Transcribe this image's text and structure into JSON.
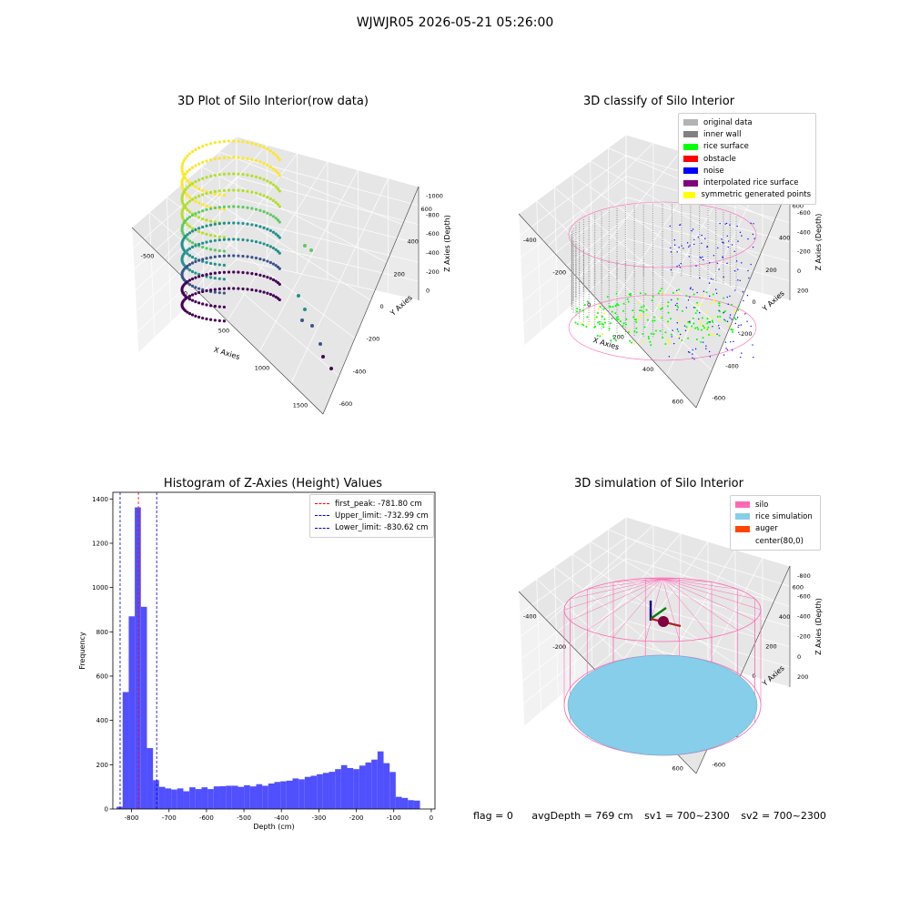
{
  "figure": {
    "suptitle": "WJWJR05 2026-05-21 05:26:00"
  },
  "panels": {
    "raw": {
      "title": "3D Plot of Silo Interior(row data)",
      "xlabel": "X Axies",
      "ylabel": "Y Axies",
      "zlabel": "Z Axies (Depth)",
      "x_ticks": [
        "-500",
        "0",
        "500",
        "1000",
        "1500"
      ],
      "y_ticks": [
        "-600",
        "-400",
        "-200",
        "0",
        "200",
        "400",
        "600"
      ],
      "z_ticks": [
        "0",
        "-200",
        "-400",
        "-600",
        "-800",
        "-1000"
      ]
    },
    "classify": {
      "title": "3D classify of Silo Interior",
      "xlabel": "X Axies",
      "ylabel": "Y Axies",
      "zlabel": "Z Axies (Depth)",
      "x_ticks": [
        "-400",
        "-200",
        "0",
        "200",
        "400",
        "600"
      ],
      "y_ticks": [
        "-600",
        "-400",
        "-200",
        "0",
        "200",
        "400",
        "600"
      ],
      "z_ticks": [
        "200",
        "0",
        "-200",
        "-400",
        "-600",
        "-800"
      ],
      "legend": [
        {
          "label": "original data",
          "color": "#b3b3b3"
        },
        {
          "label": "inner wall",
          "color": "#808080"
        },
        {
          "label": "rice surface",
          "color": "#00ff00"
        },
        {
          "label": "obstacle",
          "color": "#ff0000"
        },
        {
          "label": "noise",
          "color": "#0000ff"
        },
        {
          "label": "interpolated rice surface",
          "color": "#800080"
        },
        {
          "label": "symmetric generated points",
          "color": "#ffff00"
        }
      ]
    },
    "simulation": {
      "title": "3D simulation of Silo Interior",
      "xlabel": "X Axies",
      "ylabel": "Y Axies",
      "zlabel": "Z Axies (Depth)",
      "x_ticks": [
        "-400",
        "-200",
        "0",
        "200",
        "400",
        "600"
      ],
      "y_ticks": [
        "-600",
        "-400",
        "-200",
        "0",
        "200",
        "400",
        "600"
      ],
      "z_ticks": [
        "200",
        "0",
        "-200",
        "-400",
        "-600",
        "-800"
      ],
      "legend": [
        {
          "label": "silo",
          "color": "#ff69b4"
        },
        {
          "label": "rice simulation",
          "color": "#87ceeb"
        },
        {
          "label": "auger",
          "color": "#ff4500"
        },
        {
          "label": "center(80,0)",
          "color": ""
        }
      ]
    }
  },
  "chart_data": [
    {
      "type": "bar",
      "title": "Histogram of Z-Axies (Height) Values",
      "xlabel": "Depth (cm)",
      "ylabel": "Frequency",
      "xlim": [
        -850,
        10
      ],
      "ylim": [
        0,
        1430
      ],
      "x_ticks": [
        -800,
        -700,
        -600,
        -500,
        -400,
        -300,
        -200,
        -100,
        0
      ],
      "y_ticks": [
        0,
        200,
        400,
        600,
        800,
        1000,
        1200,
        1400
      ],
      "bar_color": "#5050ff",
      "bin_start": -840,
      "bin_width": 16.2,
      "values": [
        10,
        528,
        870,
        1362,
        913,
        275,
        130,
        100,
        93,
        88,
        93,
        80,
        98,
        90,
        98,
        90,
        102,
        103,
        105,
        105,
        100,
        107,
        102,
        112,
        105,
        115,
        122,
        125,
        128,
        138,
        134,
        145,
        150,
        157,
        163,
        168,
        180,
        198,
        185,
        180,
        196,
        210,
        223,
        260,
        207,
        167,
        55,
        50,
        40,
        38
      ],
      "vlines": [
        {
          "label": "first_peak: -781.80 cm",
          "x": -781.8,
          "color": "#ff0000"
        },
        {
          "label": "Upper_limit: -732.99 cm",
          "x": -732.99,
          "color": "#0000cc"
        },
        {
          "label": "Lower_limit: -830.62 cm",
          "x": -830.62,
          "color": "#0000cc"
        }
      ]
    }
  ],
  "footer": {
    "flag": "flag = 0",
    "avg_depth": "avgDepth = 769 cm",
    "sv1": "sv1 = 700~2300",
    "sv2": "sv2 = 700~2300"
  }
}
